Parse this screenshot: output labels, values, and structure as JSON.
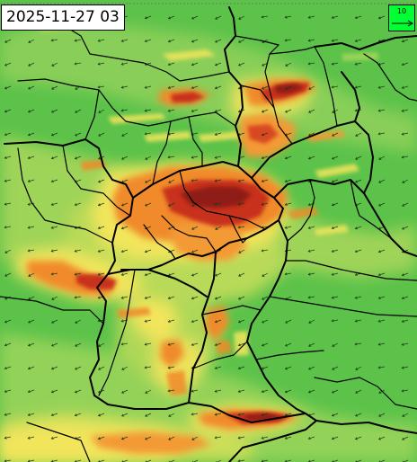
{
  "map": {
    "timestamp": "2025-11-27 03",
    "legend": {
      "reference_value": "10"
    },
    "colors": {
      "background_green": "#5cc24a",
      "yellow": "#f2e55c",
      "orange": "#f08a2c",
      "red": "#c8321c",
      "dark_red": "#8f1f12",
      "borders": "#000000",
      "legend_box": "#00ff33"
    },
    "icons": [
      "wind-arrow-icon",
      "legend-arrow-icon"
    ]
  }
}
